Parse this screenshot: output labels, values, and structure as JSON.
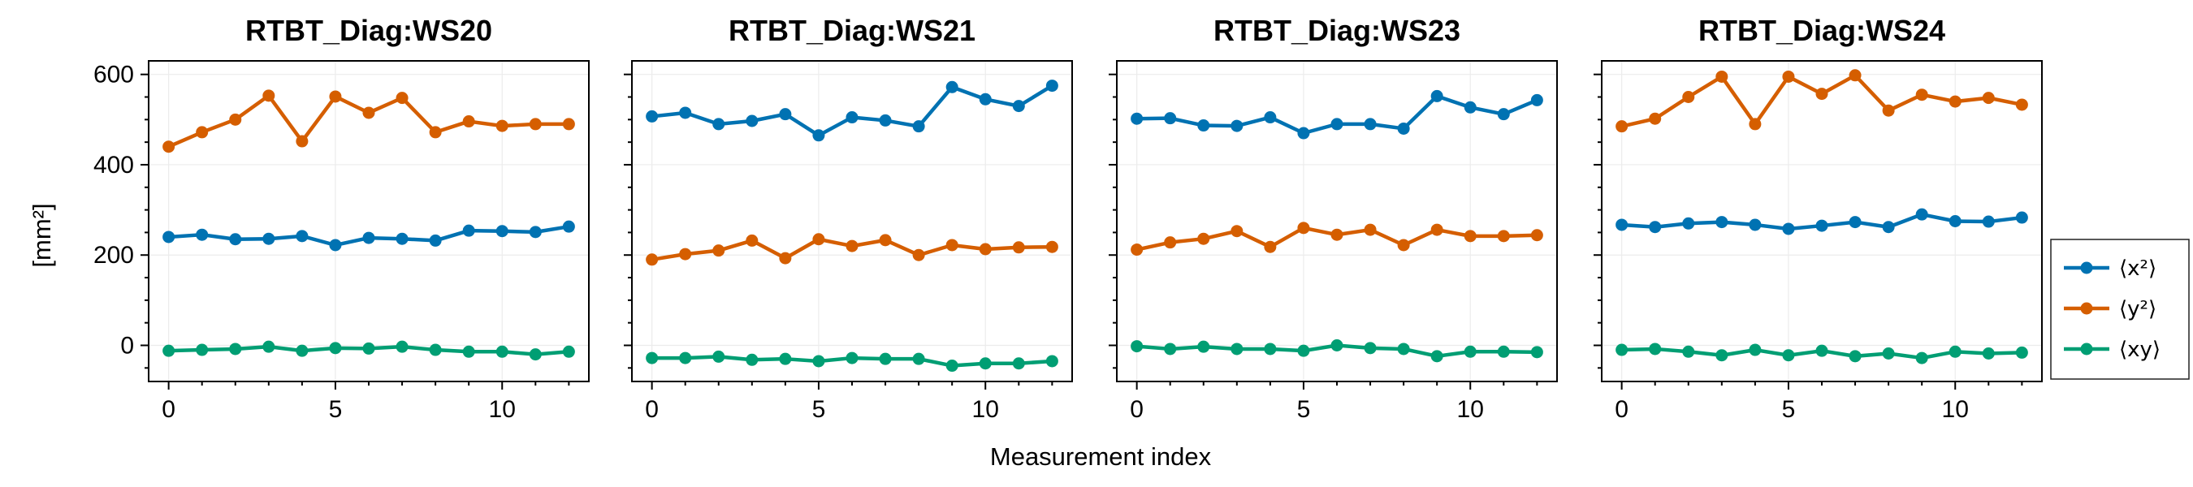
{
  "chart_data": {
    "type": "line",
    "xlabel": "Measurement index",
    "ylabel": "[mm²]",
    "ylim": [
      -80,
      630
    ],
    "xlim": [
      -0.6,
      12.6
    ],
    "xticks": [
      0,
      5,
      10
    ],
    "yticks": [
      0,
      200,
      400,
      600
    ],
    "grid": true,
    "legend_placement": "outside-right",
    "x": [
      0,
      1,
      2,
      3,
      4,
      5,
      6,
      7,
      8,
      9,
      10,
      11,
      12
    ],
    "legend": [
      {
        "name": "⟨x²⟩",
        "color": "#0072b2"
      },
      {
        "name": "⟨y²⟩",
        "color": "#d55e00"
      },
      {
        "name": "⟨xy⟩",
        "color": "#009e73"
      }
    ],
    "panels": [
      {
        "title": "RTBT_Diag:WS20",
        "series": [
          {
            "name": "⟨x²⟩",
            "color": "#0072b2",
            "values": [
              240,
              245,
              235,
              236,
              242,
              222,
              238,
              236,
              232,
              254,
              253,
              251,
              263
            ]
          },
          {
            "name": "⟨y²⟩",
            "color": "#d55e00",
            "values": [
              440,
              472,
              500,
              553,
              452,
              551,
              515,
              548,
              472,
              496,
              486,
              490,
              490
            ]
          },
          {
            "name": "⟨xy⟩",
            "color": "#009e73",
            "values": [
              -12,
              -10,
              -8,
              -3,
              -12,
              -6,
              -7,
              -3,
              -10,
              -14,
              -14,
              -20,
              -14
            ]
          }
        ]
      },
      {
        "title": "RTBT_Diag:WS21",
        "series": [
          {
            "name": "⟨x²⟩",
            "color": "#0072b2",
            "values": [
              507,
              515,
              490,
              497,
              512,
              465,
              505,
              498,
              485,
              572,
              545,
              530,
              575
            ]
          },
          {
            "name": "⟨y²⟩",
            "color": "#d55e00",
            "values": [
              190,
              202,
              210,
              232,
              193,
              235,
              220,
              233,
              200,
              222,
              213,
              217,
              218
            ]
          },
          {
            "name": "⟨xy⟩",
            "color": "#009e73",
            "values": [
              -28,
              -28,
              -25,
              -32,
              -30,
              -35,
              -28,
              -30,
              -30,
              -45,
              -40,
              -40,
              -35
            ]
          }
        ]
      },
      {
        "title": "RTBT_Diag:WS23",
        "series": [
          {
            "name": "⟨x²⟩",
            "color": "#0072b2",
            "values": [
              502,
              503,
              487,
              486,
              505,
              470,
              490,
              490,
              480,
              552,
              527,
              512,
              543
            ]
          },
          {
            "name": "⟨y²⟩",
            "color": "#d55e00",
            "values": [
              212,
              228,
              236,
              253,
              218,
              260,
              245,
              256,
              222,
              256,
              242,
              242,
              244
            ]
          },
          {
            "name": "⟨xy⟩",
            "color": "#009e73",
            "values": [
              -2,
              -8,
              -3,
              -8,
              -8,
              -12,
              0,
              -6,
              -8,
              -24,
              -14,
              -14,
              -15
            ]
          }
        ]
      },
      {
        "title": "RTBT_Diag:WS24",
        "series": [
          {
            "name": "⟨x²⟩",
            "color": "#0072b2",
            "values": [
              267,
              262,
              270,
              273,
              267,
              258,
              265,
              273,
              262,
              290,
              275,
              274,
              283
            ]
          },
          {
            "name": "⟨y²⟩",
            "color": "#d55e00",
            "values": [
              485,
              502,
              550,
              595,
              490,
              595,
              557,
              598,
              520,
              555,
              540,
              548,
              533
            ]
          },
          {
            "name": "⟨xy⟩",
            "color": "#009e73",
            "values": [
              -10,
              -8,
              -14,
              -22,
              -10,
              -22,
              -12,
              -24,
              -18,
              -28,
              -14,
              -18,
              -16
            ]
          }
        ]
      }
    ]
  }
}
